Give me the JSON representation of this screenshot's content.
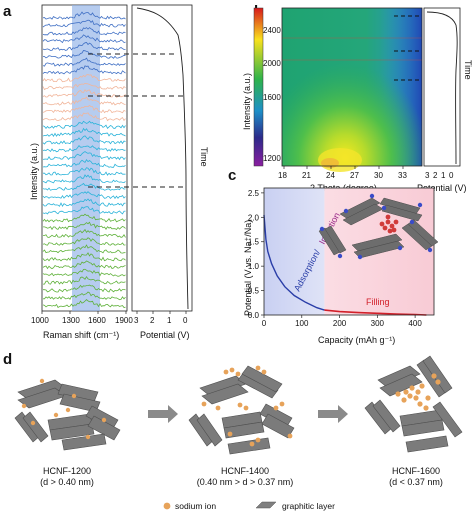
{
  "panels": {
    "a": {
      "letter": "a",
      "ylabel": "Intensity (a.u.)",
      "xlabel": "Raman shift (cm⁻¹)",
      "xticks": [
        "1000",
        "1300",
        "1600",
        "1900"
      ],
      "potential_label": "Potential (V)",
      "potential_ticks": [
        "3",
        "2",
        "1",
        "0"
      ],
      "time_label": "Time"
    },
    "b": {
      "letter": "b",
      "ylabel": "Intensity (a.u.)",
      "xlabel": "2 Theta (degree)",
      "xticks": [
        "18",
        "21",
        "24",
        "27",
        "30",
        "33"
      ],
      "yticks": [
        "1200",
        "1600",
        "2000",
        "2400"
      ],
      "potential_label": "Potential (V)",
      "potential_ticks": [
        "3",
        "2",
        "1",
        "0"
      ],
      "time_label": "Time"
    },
    "c": {
      "letter": "c",
      "ylabel": "Potential (V vs. Na⁺/Na)",
      "xlabel": "Capacity (mAh g⁻¹)",
      "xticks": [
        "0",
        "100",
        "200",
        "300",
        "400"
      ],
      "yticks": [
        "0.0",
        "0.5",
        "1.0",
        "1.5",
        "2.0",
        "2.5"
      ],
      "region1_label_a": "Adsorption/",
      "region1_label_b": "Insertion",
      "region2_label": "Filling"
    },
    "d": {
      "letter": "d",
      "structures": [
        {
          "name": "HCNF-1200",
          "condition": "(d > 0.40 nm)"
        },
        {
          "name": "HCNF-1400",
          "condition": "(0.40 nm > d > 0.37 nm)"
        },
        {
          "name": "HCNF-1600",
          "condition": "(d < 0.37 nm)"
        }
      ],
      "legend": [
        {
          "label": "sodium ion",
          "color": "#e7a35a"
        },
        {
          "label": "graphitic layer",
          "color": "#7f7f7f"
        }
      ]
    }
  },
  "chart_data": [
    {
      "type": "line",
      "panel": "c",
      "xlim": [
        0,
        450
      ],
      "ylim": [
        0,
        2.6
      ],
      "regions": [
        {
          "label": "Adsorption/Insertion",
          "x": [
            0,
            160
          ],
          "color": "#c9d0f2"
        },
        {
          "label": "Filling",
          "x": [
            160,
            450
          ],
          "color": "#f9d4dc"
        }
      ],
      "series": [
        {
          "values_x": [
            0,
            5,
            10,
            20,
            35,
            55,
            80,
            110,
            140,
            160,
            200,
            250,
            300,
            350,
            400,
            430
          ],
          "values_y": [
            2.05,
            1.55,
            1.3,
            1.05,
            0.8,
            0.58,
            0.4,
            0.26,
            0.15,
            0.1,
            0.07,
            0.05,
            0.035,
            0.02,
            0.01,
            0.0
          ]
        }
      ]
    }
  ],
  "colors": {
    "raman_blue": "#3f6fc4",
    "raman_peach": "#f1b59a",
    "raman_cyan": "#2ab3d9",
    "raman_green": "#5fb13a",
    "highlight": "#8fb0e6",
    "curve_blue": "#2a3ea8",
    "curve_red": "#d2202a"
  }
}
